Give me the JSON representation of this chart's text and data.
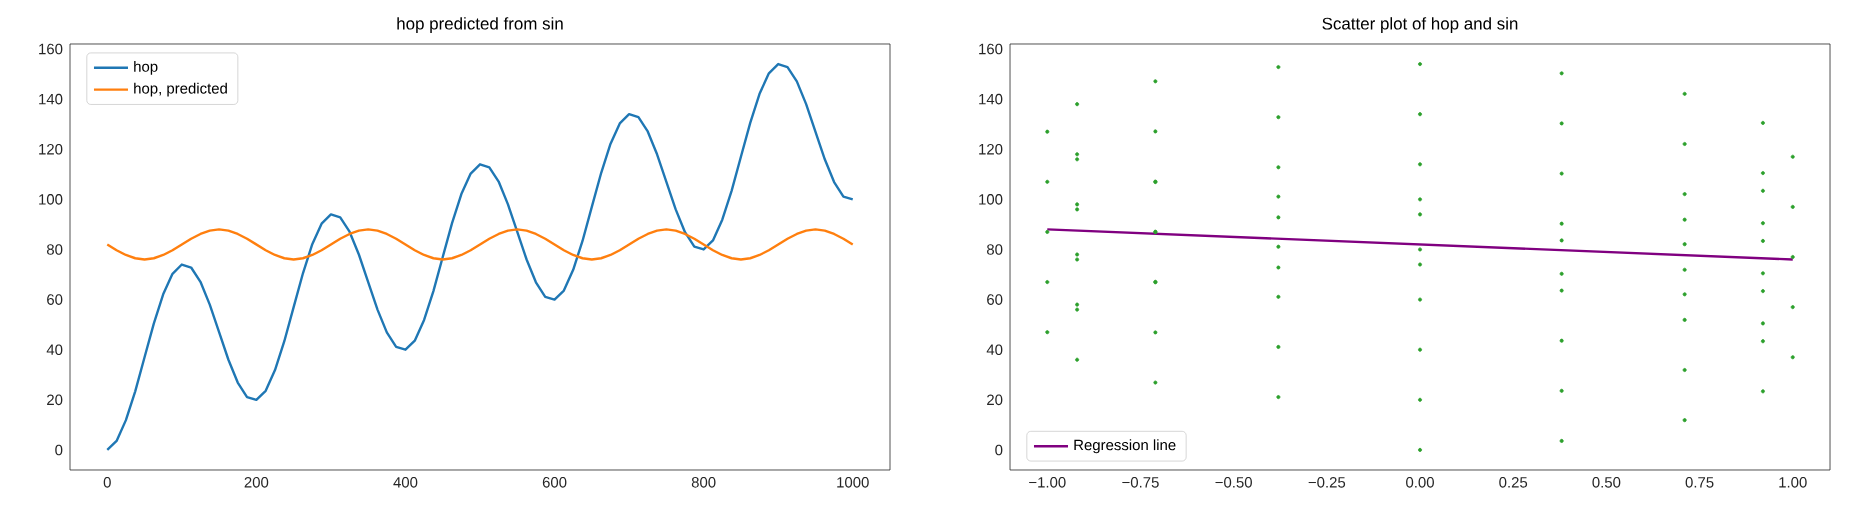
{
  "chart_data": [
    {
      "type": "line",
      "title": "hop predicted from sin",
      "x": [
        0,
        12.5,
        25,
        37.5,
        50,
        62.5,
        75,
        87.5,
        100,
        112.5,
        125,
        137.5,
        150,
        162.5,
        175,
        187.5,
        200,
        212.5,
        225,
        237.5,
        250,
        262.5,
        275,
        287.5,
        300,
        312.5,
        325,
        337.5,
        350,
        362.5,
        375,
        387.5,
        400,
        412.5,
        425,
        437.5,
        450,
        462.5,
        475,
        487.5,
        500,
        512.5,
        525,
        537.5,
        550,
        562.5,
        575,
        587.5,
        600,
        612.5,
        625,
        637.5,
        650,
        662.5,
        675,
        687.5,
        700,
        712.5,
        725,
        737.5,
        750,
        762.5,
        775,
        787.5,
        800,
        812.5,
        825,
        837.5,
        850,
        862.5,
        875,
        887.5,
        900,
        912.5,
        925,
        937.5,
        950,
        962.5,
        975,
        987.5,
        1000
      ],
      "series": [
        {
          "name": "hop",
          "color": "#1f77b4",
          "values": [
            0,
            3.6,
            11.9,
            23.4,
            37,
            50.5,
            62.1,
            70.3,
            74,
            72.8,
            67.1,
            58,
            47,
            36,
            26.9,
            21.1,
            20,
            23.6,
            31.9,
            43.4,
            57,
            70.5,
            82.1,
            90.3,
            94,
            92.8,
            87.1,
            78,
            67,
            56,
            46.9,
            41.1,
            40,
            43.6,
            51.9,
            63.4,
            77,
            90.5,
            102.1,
            110.3,
            114,
            112.8,
            107.1,
            98,
            87,
            76,
            66.9,
            61.1,
            60,
            63.6,
            71.9,
            83.4,
            97,
            110.5,
            122.1,
            130.3,
            134,
            132.8,
            127.1,
            118,
            107,
            96,
            86.9,
            81.1,
            80,
            83.6,
            91.9,
            103.4,
            117,
            130.5,
            142.1,
            150.3,
            154,
            152.8,
            147.1,
            138,
            127,
            116,
            106.9,
            101.1,
            100
          ]
        },
        {
          "name": "hop, predicted",
          "color": "#ff7f0e",
          "values": [
            82,
            79.7,
            77.8,
            76.5,
            76,
            76.5,
            77.8,
            79.7,
            82,
            84.3,
            86.2,
            87.5,
            88,
            87.5,
            86.2,
            84.3,
            82,
            79.7,
            77.8,
            76.5,
            76,
            76.5,
            77.8,
            79.7,
            82,
            84.3,
            86.2,
            87.5,
            88,
            87.5,
            86.2,
            84.3,
            82,
            79.7,
            77.8,
            76.5,
            76,
            76.5,
            77.8,
            79.7,
            82,
            84.3,
            86.2,
            87.5,
            88,
            87.5,
            86.2,
            84.3,
            82,
            79.7,
            77.8,
            76.5,
            76,
            76.5,
            77.8,
            79.7,
            82,
            84.3,
            86.2,
            87.5,
            88,
            87.5,
            86.2,
            84.3,
            82,
            79.7,
            77.8,
            76.5,
            76,
            76.5,
            77.8,
            79.7,
            82,
            84.3,
            86.2,
            87.5,
            88,
            87.5,
            86.2,
            84.3,
            82
          ]
        }
      ],
      "xlim": [
        -50,
        1050
      ],
      "xticks": [
        0,
        200,
        400,
        600,
        800,
        1000
      ],
      "ylim": [
        -8,
        162
      ],
      "yticks": [
        0,
        20,
        40,
        60,
        80,
        100,
        120,
        140,
        160
      ],
      "legend": "top left"
    },
    {
      "type": "scatter",
      "title": "Scatter plot of hop and sin",
      "series": [
        {
          "color": "#2ca02c",
          "x": [
            0,
            0.38,
            0.71,
            0.92,
            1,
            0.92,
            0.71,
            0.38,
            0,
            -0.38,
            -0.71,
            -0.92,
            -1,
            -0.92,
            -0.71,
            -0.38,
            0,
            0.38,
            0.71,
            0.92,
            1,
            0.92,
            0.71,
            0.38,
            0,
            -0.38,
            -0.71,
            -0.92,
            -1,
            -0.92,
            -0.71,
            -0.38,
            0,
            0.38,
            0.71,
            0.92,
            1,
            0.92,
            0.71,
            0.38,
            0,
            -0.38,
            -0.71,
            -0.92,
            -1,
            -0.92,
            -0.71,
            -0.38,
            0,
            0.38,
            0.71,
            0.92,
            1,
            0.92,
            0.71,
            0.38,
            0,
            -0.38,
            -0.71,
            -0.92,
            -1,
            -0.92,
            -0.71,
            -0.38,
            0,
            0.38,
            0.71,
            0.92,
            1,
            0.92,
            0.71,
            0.38,
            0,
            -0.38,
            -0.71,
            -0.92,
            -1,
            -0.92,
            -0.71,
            -0.38,
            0
          ],
          "values": [
            0,
            3.6,
            11.9,
            23.4,
            37,
            50.5,
            62.1,
            70.3,
            74,
            72.8,
            67.1,
            58,
            47,
            36,
            26.9,
            21.1,
            20,
            23.6,
            31.9,
            43.4,
            57,
            70.5,
            82.1,
            90.3,
            94,
            92.8,
            87.1,
            78,
            67,
            56,
            46.9,
            41.1,
            40,
            43.6,
            51.9,
            63.4,
            77,
            90.5,
            102.1,
            110.3,
            114,
            112.8,
            107.1,
            98,
            87,
            76,
            66.9,
            61.1,
            60,
            63.6,
            71.9,
            83.4,
            97,
            110.5,
            122.1,
            130.3,
            134,
            132.8,
            127.1,
            118,
            107,
            96,
            86.9,
            81.1,
            80,
            83.6,
            91.9,
            103.4,
            117,
            130.5,
            142.1,
            150.3,
            154,
            152.8,
            147.1,
            138,
            127,
            116,
            106.9,
            101.1,
            100
          ]
        },
        {
          "name": "Regression line",
          "type": "line",
          "color": "#800080",
          "x": [
            -1,
            1
          ],
          "values": [
            88,
            76
          ]
        }
      ],
      "xlim": [
        -1.1,
        1.1
      ],
      "xticks": [
        {
          "value": -1,
          "label": "−1.00"
        },
        {
          "value": -0.75,
          "label": "−0.75"
        },
        {
          "value": -0.5,
          "label": "−0.50"
        },
        {
          "value": -0.25,
          "label": "−0.25"
        },
        {
          "value": 0,
          "label": "0.00"
        },
        {
          "value": 0.25,
          "label": "0.25"
        },
        {
          "value": 0.5,
          "label": "0.50"
        },
        {
          "value": 0.75,
          "label": "0.75"
        },
        {
          "value": 1,
          "label": "1.00"
        }
      ],
      "ylim": [
        -8,
        162
      ],
      "yticks": [
        0,
        20,
        40,
        60,
        80,
        100,
        120,
        140,
        160
      ],
      "legend": "bottom left"
    }
  ]
}
